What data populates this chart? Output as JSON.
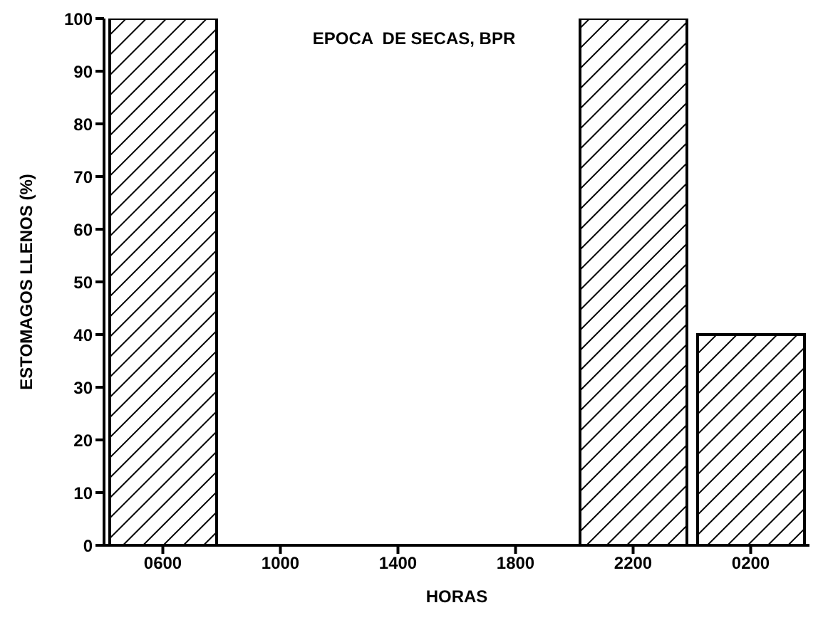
{
  "chart_data": {
    "type": "bar",
    "title": "EPOCA  DE SECAS, BPR",
    "xlabel": "HORAS",
    "ylabel": "ESTOMAGOS LLENOS (%)",
    "categories": [
      "0600",
      "1000",
      "1400",
      "1800",
      "2200",
      "0200"
    ],
    "values": [
      100,
      0,
      0,
      0,
      100,
      40
    ],
    "color": "#000000",
    "ylim": [
      0,
      100
    ],
    "yticks": [
      0,
      10,
      20,
      30,
      40,
      50,
      60,
      70,
      80,
      90,
      100
    ],
    "grid": false
  }
}
